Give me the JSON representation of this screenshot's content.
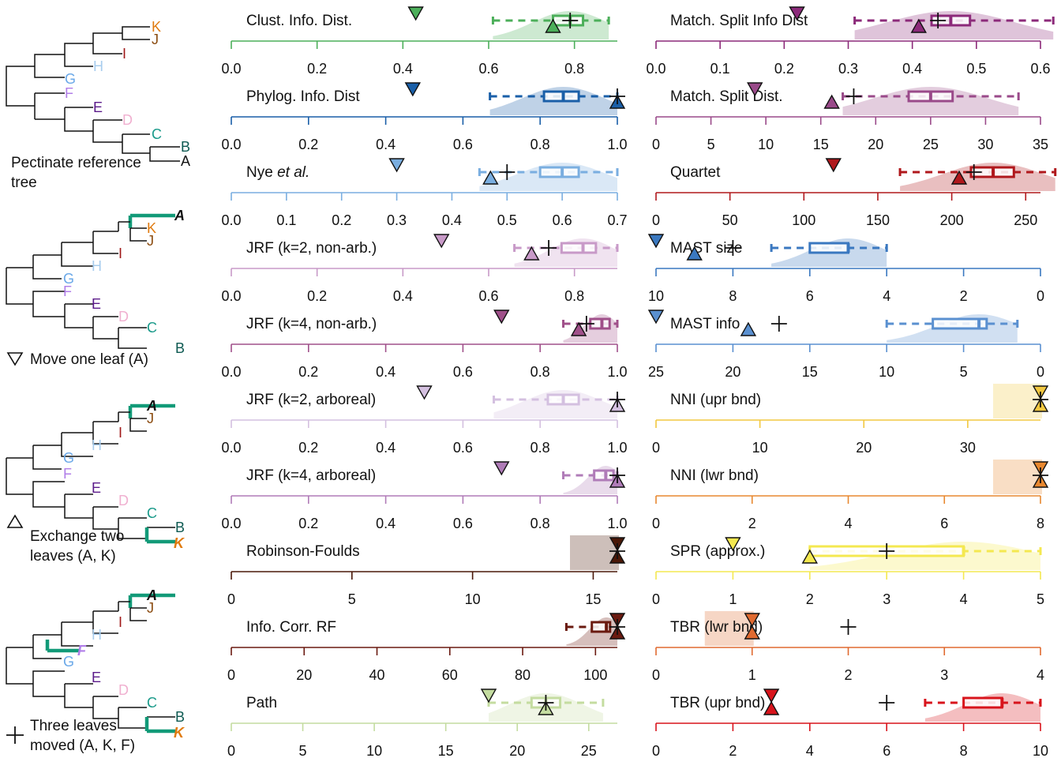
{
  "legend": {
    "ref_label_1": "Pectinate reference",
    "ref_label_2": "tree",
    "move_one": "Move one leaf (A)",
    "exchange_1": "Exchange two",
    "exchange_2": "leaves (A, K)",
    "three_1": "Three leaves",
    "three_2": "moved (A, K, F)"
  },
  "trees": {
    "leaves": [
      "K",
      "J",
      "I",
      "H",
      "G",
      "F",
      "E",
      "D",
      "C",
      "B",
      "A"
    ],
    "leaf_colors": {
      "K": "#e07b10",
      "J": "#8a4a0e",
      "I": "#a01818",
      "H": "#a8cdee",
      "G": "#6aa8e8",
      "F": "#b07ee8",
      "E": "#5b1a8a",
      "D": "#f0b0d0",
      "C": "#1a9a8a",
      "B": "#0e5a52",
      "A": "#111111"
    },
    "highlight_color": "#129a78"
  },
  "chart_data": [
    {
      "type": "box",
      "title": "Clust. Info. Dist.",
      "color": "#4caf5a",
      "xlim": [
        0,
        0.9
      ],
      "ticks": [
        "0.0",
        "0.2",
        "0.4",
        "0.6",
        "0.8"
      ],
      "tick_values": [
        0,
        0.2,
        0.4,
        0.6,
        0.8
      ],
      "whisker": [
        0.61,
        0.88
      ],
      "box": [
        0.75,
        0.82
      ],
      "median": 0.79,
      "move_one": 0.43,
      "exchange": 0.75,
      "three": 0.79
    },
    {
      "type": "box",
      "title": "Match. Split Info Dist",
      "color": "#8c2a7a",
      "xlim": [
        0,
        0.6
      ],
      "ticks": [
        "0.0",
        "0.1",
        "0.2",
        "0.3",
        "0.4",
        "0.5",
        "0.6"
      ],
      "tick_values": [
        0,
        0.1,
        0.2,
        0.3,
        0.4,
        0.5,
        0.6
      ],
      "whisker": [
        0.31,
        0.62
      ],
      "box": [
        0.43,
        0.49
      ],
      "median": 0.46,
      "move_one": 0.22,
      "exchange": 0.41,
      "three": 0.44
    },
    {
      "type": "box",
      "title": "Phylog. Info. Dist",
      "color": "#1a5fa8",
      "xlim": [
        0,
        1.0
      ],
      "ticks": [
        "0.0",
        "0.2",
        "0.4",
        "0.6",
        "0.8",
        "1.0"
      ],
      "tick_values": [
        0,
        0.2,
        0.4,
        0.6,
        0.8,
        1.0
      ],
      "whisker": [
        0.67,
        1.0
      ],
      "box": [
        0.81,
        0.9
      ],
      "median": 0.86,
      "move_one": 0.47,
      "exchange": 1.0,
      "three": 1.0
    },
    {
      "type": "box",
      "title": "Match. Split Dist.",
      "color": "#9a4a8a",
      "xlim": [
        0,
        35
      ],
      "ticks": [
        "0",
        "5",
        "10",
        "15",
        "20",
        "25",
        "30",
        "35"
      ],
      "tick_values": [
        0,
        5,
        10,
        15,
        20,
        25,
        30,
        35
      ],
      "whisker": [
        17,
        33
      ],
      "box": [
        23,
        27
      ],
      "median": 25,
      "move_one": 9,
      "exchange": 16,
      "three": 18
    },
    {
      "type": "box",
      "title": "Nye et al.",
      "title_main": "Nye ",
      "title_italic": "et al.",
      "color": "#7aaee0",
      "xlim": [
        0,
        0.7
      ],
      "ticks": [
        "0.0",
        "0.1",
        "0.2",
        "0.3",
        "0.4",
        "0.5",
        "0.6",
        "0.7"
      ],
      "tick_values": [
        0,
        0.1,
        0.2,
        0.3,
        0.4,
        0.5,
        0.6,
        0.7
      ],
      "whisker": [
        0.45,
        0.7
      ],
      "box": [
        0.56,
        0.63
      ],
      "median": 0.6,
      "move_one": 0.3,
      "exchange": 0.47,
      "three": 0.5
    },
    {
      "type": "box",
      "title": "Quartet",
      "color": "#b0181c",
      "xlim": [
        0,
        260
      ],
      "ticks": [
        "0",
        "50",
        "100",
        "150",
        "200",
        "250"
      ],
      "tick_values": [
        0,
        50,
        100,
        150,
        200,
        250
      ],
      "whisker": [
        165,
        270
      ],
      "box": [
        213,
        242
      ],
      "median": 228,
      "move_one": 120,
      "exchange": 205,
      "three": 215
    },
    {
      "type": "box",
      "title": "JRF (k=2, non-arb.)",
      "color": "#c89ac8",
      "xlim": [
        0,
        0.9
      ],
      "ticks": [
        "0.0",
        "0.2",
        "0.4",
        "0.6",
        "0.8"
      ],
      "tick_values": [
        0,
        0.2,
        0.4,
        0.6,
        0.8
      ],
      "whisker": [
        0.66,
        0.9
      ],
      "box": [
        0.77,
        0.85
      ],
      "median": 0.82,
      "move_one": 0.49,
      "exchange": 0.7,
      "three": 0.74
    },
    {
      "type": "box",
      "title": "MAST size",
      "color": "#3a78c0",
      "xlim": [
        10,
        0
      ],
      "ticks": [
        "10",
        "8",
        "6",
        "4",
        "2",
        "0"
      ],
      "tick_values": [
        10,
        8,
        6,
        4,
        2,
        0
      ],
      "whisker": [
        7,
        4
      ],
      "box": [
        6,
        5
      ],
      "median": 5,
      "move_one": 10,
      "exchange": 9,
      "three": 8
    },
    {
      "type": "box",
      "title": "JRF (k=4, non-arb.)",
      "color": "#a0508a",
      "xlim": [
        0,
        1.0
      ],
      "ticks": [
        "0.0",
        "0.2",
        "0.4",
        "0.6",
        "0.8",
        "1.0"
      ],
      "tick_values": [
        0,
        0.2,
        0.4,
        0.6,
        0.8,
        1.0
      ],
      "whisker": [
        0.86,
        1.0
      ],
      "box": [
        0.93,
        0.98
      ],
      "median": 0.96,
      "move_one": 0.7,
      "exchange": 0.9,
      "three": 0.92
    },
    {
      "type": "box",
      "title": "MAST info",
      "color": "#5a90d0",
      "xlim": [
        25,
        0
      ],
      "ticks": [
        "25",
        "20",
        "15",
        "10",
        "5",
        "0"
      ],
      "tick_values": [
        25,
        20,
        15,
        10,
        5,
        0
      ],
      "whisker": [
        10,
        1.5
      ],
      "box": [
        7,
        3.5
      ],
      "median": 4,
      "move_one": 25,
      "exchange": 19,
      "three": 17
    },
    {
      "type": "box",
      "title": "JRF (k=2, arboreal)",
      "color": "#d4c0e0",
      "xlim": [
        0,
        1.0
      ],
      "ticks": [
        "0.0",
        "0.2",
        "0.4",
        "0.6",
        "0.8",
        "1.0"
      ],
      "tick_values": [
        0,
        0.2,
        0.4,
        0.6,
        0.8,
        1.0
      ],
      "whisker": [
        0.68,
        1.0
      ],
      "box": [
        0.82,
        0.9
      ],
      "median": 0.86,
      "move_one": 0.5,
      "exchange": 1.0,
      "three": 1.0
    },
    {
      "type": "box",
      "title": "NNI (upr bnd)",
      "color": "#f2c840",
      "xlim": [
        0,
        37
      ],
      "ticks": [
        "0",
        "10",
        "20",
        "30"
      ],
      "tick_values": [
        0,
        10,
        20,
        30
      ],
      "whisker": null,
      "box": null,
      "median": null,
      "move_one": 37,
      "exchange": 37,
      "three": 37
    },
    {
      "type": "box",
      "title": "JRF (k=4, arboreal)",
      "color": "#b07cb8",
      "xlim": [
        0,
        1.0
      ],
      "ticks": [
        "0.0",
        "0.2",
        "0.4",
        "0.6",
        "0.8",
        "1.0"
      ],
      "tick_values": [
        0,
        0.2,
        0.4,
        0.6,
        0.8,
        1.0
      ],
      "whisker": [
        0.86,
        1.0
      ],
      "box": [
        0.94,
        0.99
      ],
      "median": 0.97,
      "move_one": 0.7,
      "exchange": 1.0,
      "three": 1.0
    },
    {
      "type": "box",
      "title": "NNI (lwr bnd)",
      "color": "#e88830",
      "xlim": [
        0,
        8
      ],
      "ticks": [
        "0",
        "2",
        "4",
        "6",
        "8"
      ],
      "tick_values": [
        0,
        2,
        4,
        6,
        8
      ],
      "whisker": null,
      "box": null,
      "median": null,
      "move_one": 8,
      "exchange": 8,
      "three": 8
    },
    {
      "type": "box",
      "title": "Robinson-Foulds",
      "color": "#4a1808",
      "xlim": [
        0,
        16
      ],
      "ticks": [
        "0",
        "5",
        "10",
        "15"
      ],
      "tick_values": [
        0,
        5,
        10,
        15
      ],
      "whisker": null,
      "box": null,
      "median": null,
      "move_one": 16,
      "exchange": 16,
      "three": 16
    },
    {
      "type": "box",
      "title": "SPR (approx.)",
      "color": "#f4e850",
      "xlim": [
        0,
        5
      ],
      "ticks": [
        "0",
        "1",
        "2",
        "3",
        "4",
        "5"
      ],
      "tick_values": [
        0,
        1,
        2,
        3,
        4,
        5
      ],
      "whisker": [
        2,
        5
      ],
      "box": [
        2,
        4
      ],
      "median": 4,
      "move_one": 1,
      "exchange": 2,
      "three": 3
    },
    {
      "type": "box",
      "title": "Info. Corr. RF",
      "color": "#6a1a10",
      "xlim": [
        0,
        106
      ],
      "ticks": [
        "0",
        "20",
        "40",
        "60",
        "80",
        "100"
      ],
      "tick_values": [
        0,
        20,
        40,
        60,
        80,
        100
      ],
      "whisker": [
        92,
        106
      ],
      "box": [
        99,
        104
      ],
      "median": 103,
      "move_one": 106,
      "exchange": 106,
      "three": 106
    },
    {
      "type": "box",
      "title": "TBR (lwr bnd)",
      "color": "#e06a30",
      "xlim": [
        0,
        4
      ],
      "ticks": [
        "0",
        "1",
        "2",
        "3",
        "4"
      ],
      "tick_values": [
        0,
        1,
        2,
        3,
        4
      ],
      "whisker": null,
      "box": null,
      "median": null,
      "move_one": 1,
      "exchange": 1,
      "three": 2
    },
    {
      "type": "box",
      "title": "Path",
      "color": "#c4dca0",
      "xlim": [
        0,
        27
      ],
      "ticks": [
        "0",
        "5",
        "10",
        "15",
        "20",
        "25"
      ],
      "tick_values": [
        0,
        5,
        10,
        15,
        20,
        25
      ],
      "whisker": [
        18,
        26
      ],
      "box": [
        21,
        23
      ],
      "median": 22,
      "move_one": 18,
      "exchange": 22,
      "three": 22
    },
    {
      "type": "box",
      "title": "TBR (upr bnd)",
      "color": "#d8141c",
      "xlim": [
        0,
        10
      ],
      "ticks": [
        "0",
        "2",
        "4",
        "6",
        "8",
        "10"
      ],
      "tick_values": [
        0,
        2,
        4,
        6,
        8,
        10
      ],
      "whisker": [
        7,
        10
      ],
      "box": [
        8,
        9
      ],
      "median": 9,
      "move_one": 3,
      "exchange": 3,
      "three": 6
    }
  ]
}
